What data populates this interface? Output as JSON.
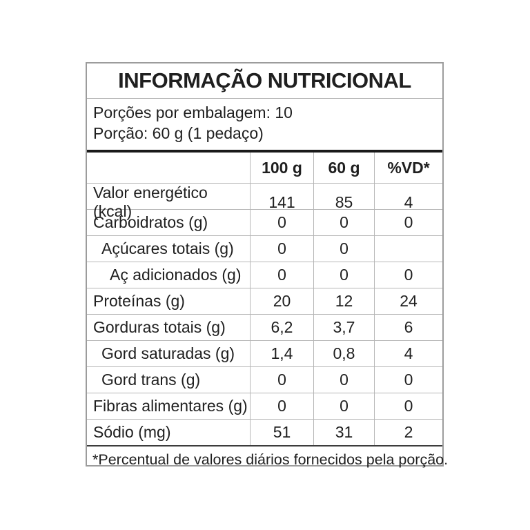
{
  "nutrition_label": {
    "title": "INFORMAÇÃO NUTRICIONAL",
    "servings_line": "Porções por embalagem: 10",
    "portion_line": "Porção: 60 g (1 pedaço)",
    "footnote": "*Percentual de valores diários fornecidos pela porção.",
    "colors": {
      "text": "#1f1f1f",
      "thick_rule": "#1a1a1a",
      "thin_rule": "#b6b6b6",
      "outer_border": "#9c9c9c"
    },
    "table": {
      "columns": [
        "100 g",
        "60 g",
        "%VD*"
      ],
      "rows": [
        {
          "label": "Valor energético (kcal)",
          "per_100g": "141",
          "per_60g": "85",
          "vd": "4",
          "indent": 0
        },
        {
          "label": "Carboidratos (g)",
          "per_100g": "0",
          "per_60g": "0",
          "vd": "0",
          "indent": 0
        },
        {
          "label": "Açúcares totais (g)",
          "per_100g": "0",
          "per_60g": "0",
          "vd": "",
          "indent": 1
        },
        {
          "label": "Aç adicionados (g)",
          "per_100g": "0",
          "per_60g": "0",
          "vd": "0",
          "indent": 2
        },
        {
          "label": "Proteínas (g)",
          "per_100g": "20",
          "per_60g": "12",
          "vd": "24",
          "indent": 0
        },
        {
          "label": "Gorduras totais (g)",
          "per_100g": "6,2",
          "per_60g": "3,7",
          "vd": "6",
          "indent": 0
        },
        {
          "label": "Gord saturadas (g)",
          "per_100g": "1,4",
          "per_60g": "0,8",
          "vd": "4",
          "indent": 1
        },
        {
          "label": "Gord trans (g)",
          "per_100g": "0",
          "per_60g": "0",
          "vd": "0",
          "indent": 1
        },
        {
          "label": "Fibras alimentares (g)",
          "per_100g": "0",
          "per_60g": "0",
          "vd": "0",
          "indent": 0
        },
        {
          "label": "Sódio (mg)",
          "per_100g": "51",
          "per_60g": "31",
          "vd": "2",
          "indent": 0
        }
      ]
    }
  }
}
